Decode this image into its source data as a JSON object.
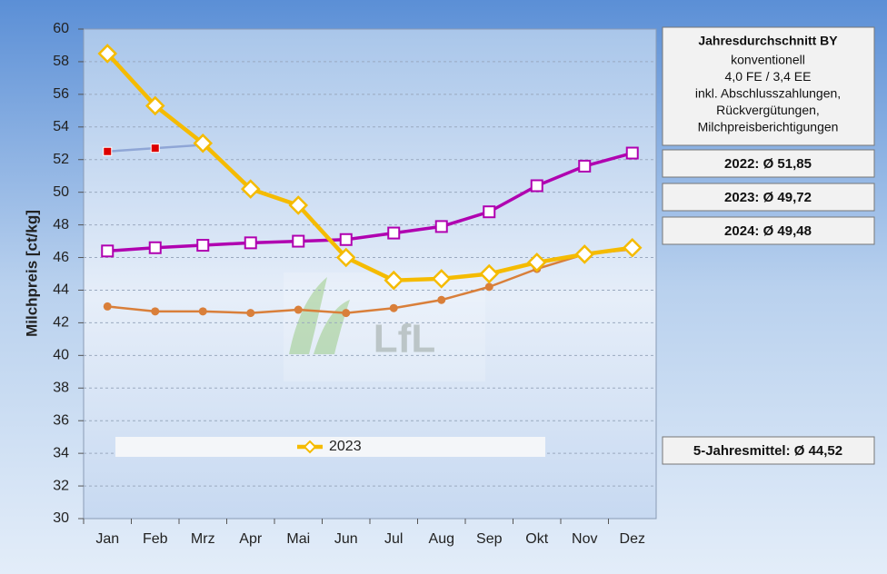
{
  "chart_data": {
    "type": "line",
    "y_label": "Milchpreis [ct/kg]",
    "categories": [
      "Jan",
      "Feb",
      "Mrz",
      "Apr",
      "Mai",
      "Jun",
      "Jul",
      "Aug",
      "Sep",
      "Okt",
      "Nov",
      "Dez"
    ],
    "series": [
      {
        "color": "#d97f3a",
        "line_color": "#d97f3a",
        "marker": "circle",
        "width": 2.5,
        "values": [
          43.0,
          42.7,
          42.7,
          42.6,
          42.8,
          42.6,
          42.9,
          43.4,
          44.2,
          45.3,
          46.2,
          46.5
        ]
      },
      {
        "color": "#dd0000",
        "line_color": "#8fa6d6",
        "marker": "cross-square",
        "width": 2.5,
        "values": [
          52.5,
          52.7,
          52.9,
          null,
          null,
          null,
          null,
          null,
          null,
          null,
          null,
          null
        ]
      },
      {
        "color": "#b000b0",
        "line_color": "#b000b0",
        "marker": "square",
        "width": 3.5,
        "values": [
          46.4,
          46.6,
          46.75,
          46.9,
          47.0,
          47.1,
          47.5,
          47.9,
          48.8,
          50.4,
          51.6,
          52.4
        ]
      },
      {
        "name": "2023",
        "color": "#f5bb00",
        "line_color": "#f5bb00",
        "marker": "diamond",
        "width": 4.5,
        "values": [
          58.5,
          55.3,
          53.0,
          50.2,
          49.2,
          46.0,
          44.6,
          44.7,
          45.0,
          45.7,
          46.2,
          46.6
        ]
      }
    ],
    "ylim": [
      30,
      60
    ],
    "yticks": [
      30,
      32,
      34,
      36,
      38,
      40,
      42,
      44,
      46,
      48,
      50,
      52,
      54,
      56,
      58,
      60
    ],
    "grid": true,
    "watermark": "LfL"
  },
  "side_panel": {
    "info_title": "Jahresdurchschnitt BY",
    "info_lines": [
      "konventionell",
      "4,0 FE / 3,4 EE",
      "inkl. Abschlusszahlungen,",
      "Rückvergütungen,",
      "Milchpreisberichtigungen"
    ],
    "averages": [
      "2022: Ø 51,85",
      "2023: Ø 49,72",
      "2024: Ø 49,48"
    ],
    "five_year": "5-Jahresmittel: Ø 44,52"
  }
}
